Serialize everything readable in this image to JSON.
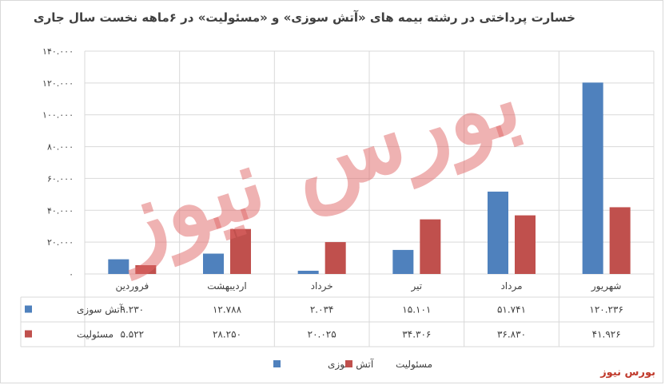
{
  "title": "خسارت پرداختی  در رشته بیمه های «آتش سوزی» و «مسئولیت» در ۶ماهه نخست سال جاری",
  "source": "بورس نیوز",
  "watermark_text": "بورس نیوز",
  "colors": {
    "fire": "#4f81bd",
    "liability": "#c0504d",
    "grid": "#d9d9d9",
    "text": "#404040",
    "source": "#c0392b",
    "watermark": "#e06666"
  },
  "chart_data": {
    "type": "bar",
    "title": "خسارت پرداختی  در رشته بیمه های «آتش سوزی» و «مسئولیت» در ۶ماهه نخست سال جاری",
    "categories": [
      "فروردین",
      "اردیبهشت",
      "خرداد",
      "تیر",
      "مرداد",
      "شهریور"
    ],
    "series": [
      {
        "name": "آتش سوزی",
        "values": [
          9230,
          12788,
          2034,
          15101,
          51741,
          120236
        ],
        "labels": [
          "۹.۲۳۰",
          "۱۲.۷۸۸",
          "۲.۰۳۴",
          "۱۵.۱۰۱",
          "۵۱.۷۴۱",
          "۱۲۰.۲۳۶"
        ]
      },
      {
        "name": "مسئولیت",
        "values": [
          5522,
          28250,
          20025,
          34306,
          36830,
          41926
        ],
        "labels": [
          "۵.۵۲۲",
          "۲۸.۲۵۰",
          "۲۰.۰۲۵",
          "۳۴.۳۰۶",
          "۳۶.۸۳۰",
          "۴۱.۹۲۶"
        ]
      }
    ],
    "ylim": [
      0,
      140000
    ],
    "yticks": [
      0,
      20000,
      40000,
      60000,
      80000,
      100000,
      120000,
      140000
    ],
    "ytick_labels": [
      "۰",
      "۲۰.۰۰۰",
      "۴۰.۰۰۰",
      "۶۰.۰۰۰",
      "۸۰.۰۰۰",
      "۱۰۰.۰۰۰",
      "۱۲۰.۰۰۰",
      "۱۴۰.۰۰۰"
    ],
    "xlabel": "",
    "ylabel": "",
    "grid": true,
    "legend": "bottom",
    "data_table": true
  }
}
